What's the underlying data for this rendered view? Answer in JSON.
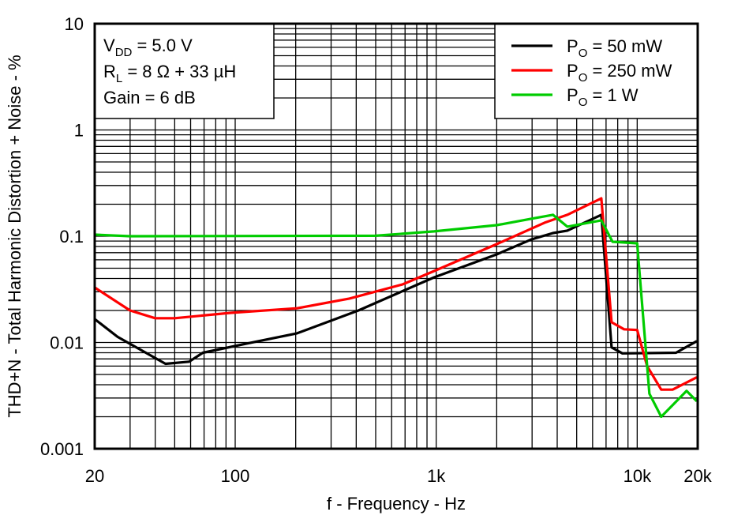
{
  "chart_data": {
    "type": "line",
    "xlabel": "f - Frequency - Hz",
    "ylabel": "THD+N - Total Harmonic Distortion + Noise - %",
    "xscale": "log",
    "yscale": "log",
    "xlim": [
      20,
      20000
    ],
    "ylim": [
      0.001,
      10
    ],
    "grid": true,
    "x_ticks": [
      {
        "v": 20,
        "label": "20"
      },
      {
        "v": 100,
        "label": "100"
      },
      {
        "v": 1000,
        "label": "1k"
      },
      {
        "v": 10000,
        "label": "10k"
      },
      {
        "v": 20000,
        "label": "20k"
      }
    ],
    "y_ticks": [
      {
        "v": 10,
        "label": "10"
      },
      {
        "v": 1,
        "label": "1"
      },
      {
        "v": 0.1,
        "label": "0.1"
      },
      {
        "v": 0.01,
        "label": "0.01"
      },
      {
        "v": 0.001,
        "label": "0.001"
      }
    ],
    "annotation": [
      {
        "main": "V",
        "sub": "DD",
        "rest": " = 5.0 V"
      },
      {
        "main": "R",
        "sub": "L",
        "rest": " = 8 Ω + 33 µH"
      },
      {
        "main": "Gain = 6 dB",
        "sub": "",
        "rest": ""
      }
    ],
    "legend_placement": "top-right",
    "series": [
      {
        "name": "P_O = 50 mW",
        "legend": {
          "main": "P",
          "sub": "O",
          "rest": " = 50 mW"
        },
        "color": "#000000",
        "x": [
          20,
          26,
          45,
          59,
          69,
          112,
          203,
          410,
          975,
          2000,
          2965,
          3810,
          4490,
          6630,
          7460,
          8440,
          15600,
          19800
        ],
        "y": [
          0.0166,
          0.0113,
          0.0063,
          0.0066,
          0.008,
          0.0097,
          0.0122,
          0.02,
          0.041,
          0.0675,
          0.093,
          0.107,
          0.113,
          0.159,
          0.009,
          0.0079,
          0.008,
          0.0103
        ]
      },
      {
        "name": "P_O = 250 mW",
        "legend": {
          "main": "P",
          "sub": "O",
          "rest": " = 250 mW"
        },
        "color": "#ff0000",
        "x": [
          20,
          30,
          40,
          50,
          95,
          203,
          370,
          680,
          975,
          2000,
          3460,
          4490,
          6630,
          7460,
          8600,
          10000,
          11200,
          13170,
          15000,
          19800
        ],
        "y": [
          0.0329,
          0.02,
          0.0169,
          0.0169,
          0.019,
          0.021,
          0.0259,
          0.0352,
          0.047,
          0.0843,
          0.134,
          0.159,
          0.227,
          0.0155,
          0.0133,
          0.0131,
          0.006,
          0.0036,
          0.0036,
          0.0047
        ]
      },
      {
        "name": "P_O = 1 W",
        "legend": {
          "main": "P",
          "sub": "O",
          "rest": " = 1 W"
        },
        "color": "#00cc00",
        "x": [
          20,
          30,
          500,
          975,
          2000,
          2965,
          3810,
          4490,
          6630,
          7540,
          10000,
          11500,
          13170,
          17600,
          19800
        ],
        "y": [
          0.1035,
          0.1,
          0.101,
          0.111,
          0.127,
          0.146,
          0.159,
          0.123,
          0.141,
          0.0887,
          0.0857,
          0.0033,
          0.002,
          0.0035,
          0.0028
        ]
      }
    ]
  }
}
